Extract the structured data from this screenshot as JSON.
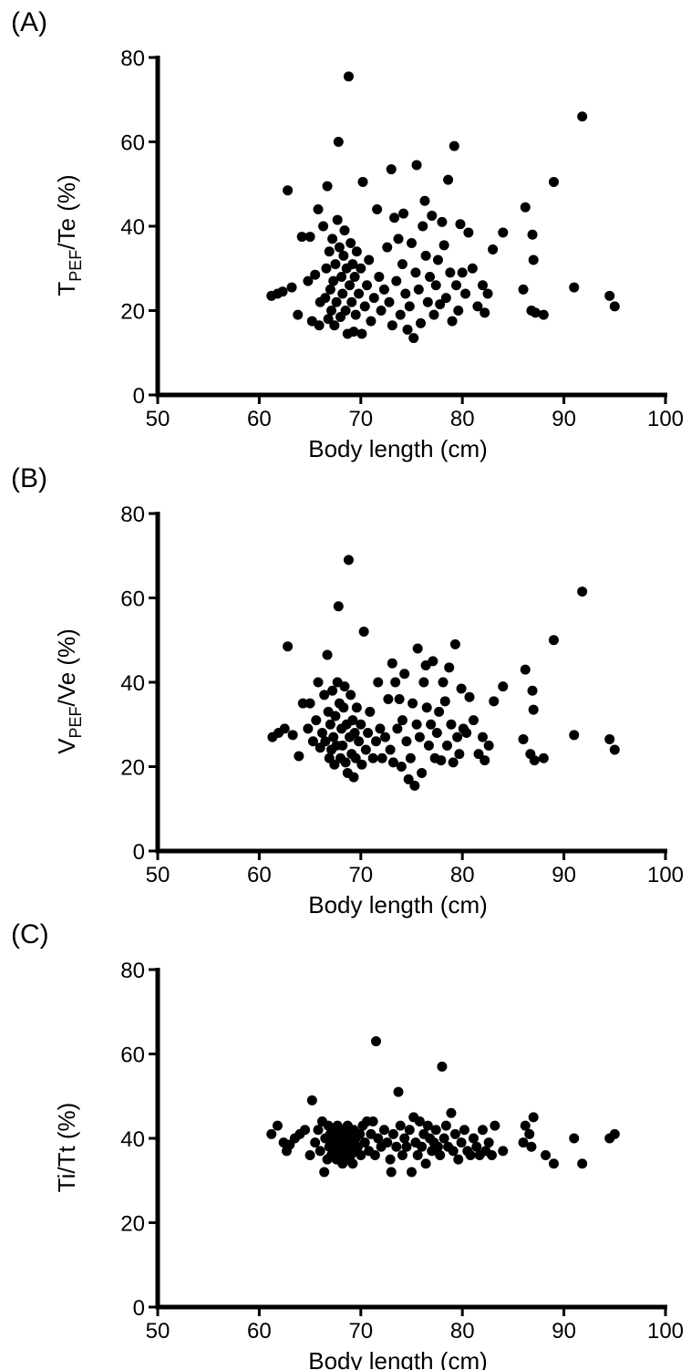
{
  "chart_data": [
    {
      "panel_label": "(A)",
      "type": "scatter",
      "xlabel": "Body length (cm)",
      "ylabel": {
        "main": "T",
        "sub": "PEF",
        "rest": "/Te (%)"
      },
      "xlim": [
        50,
        100
      ],
      "ylim": [
        0,
        80
      ],
      "xticks": [
        "50",
        "60",
        "70",
        "80",
        "90",
        "100"
      ],
      "yticks": [
        "0",
        "20",
        "40",
        "60",
        "80"
      ],
      "points": [
        [
          61.2,
          23.5
        ],
        [
          61.8,
          24
        ],
        [
          62.3,
          24.5
        ],
        [
          62.8,
          48.5
        ],
        [
          63.2,
          25.5
        ],
        [
          63.8,
          19
        ],
        [
          64.2,
          37.5
        ],
        [
          64.8,
          27
        ],
        [
          65.0,
          37.5
        ],
        [
          65.2,
          17.5
        ],
        [
          65.5,
          28.5
        ],
        [
          65.8,
          44
        ],
        [
          65.9,
          16.5
        ],
        [
          66.0,
          22
        ],
        [
          66.3,
          40
        ],
        [
          66.5,
          23
        ],
        [
          66.6,
          30
        ],
        [
          66.7,
          49.5
        ],
        [
          66.8,
          18
        ],
        [
          66.9,
          34
        ],
        [
          67.0,
          25
        ],
        [
          67.1,
          20
        ],
        [
          67.2,
          37
        ],
        [
          67.3,
          27
        ],
        [
          67.4,
          16.5
        ],
        [
          67.5,
          31
        ],
        [
          67.6,
          22
        ],
        [
          67.7,
          41.5
        ],
        [
          67.8,
          60
        ],
        [
          67.9,
          35
        ],
        [
          68.0,
          18.5
        ],
        [
          68.1,
          28
        ],
        [
          68.2,
          24
        ],
        [
          68.3,
          33
        ],
        [
          68.4,
          39
        ],
        [
          68.5,
          20
        ],
        [
          68.6,
          30
        ],
        [
          68.7,
          14.5
        ],
        [
          68.8,
          75.5
        ],
        [
          68.9,
          26
        ],
        [
          69.0,
          36
        ],
        [
          69.1,
          22
        ],
        [
          69.2,
          31
        ],
        [
          69.3,
          15
        ],
        [
          69.4,
          28
        ],
        [
          69.5,
          19
        ],
        [
          69.6,
          34
        ],
        [
          69.8,
          24
        ],
        [
          70.0,
          30
        ],
        [
          70.1,
          14.5
        ],
        [
          70.2,
          50.5
        ],
        [
          70.4,
          21
        ],
        [
          70.6,
          26
        ],
        [
          70.8,
          32
        ],
        [
          71.0,
          17.5
        ],
        [
          71.3,
          23
        ],
        [
          71.6,
          44
        ],
        [
          71.8,
          28
        ],
        [
          72.0,
          20
        ],
        [
          72.3,
          25
        ],
        [
          72.6,
          35
        ],
        [
          72.8,
          22
        ],
        [
          73.0,
          53.5
        ],
        [
          73.1,
          16.5
        ],
        [
          73.3,
          42
        ],
        [
          73.5,
          27
        ],
        [
          73.7,
          37
        ],
        [
          73.9,
          19
        ],
        [
          74.1,
          31
        ],
        [
          74.2,
          43
        ],
        [
          74.4,
          24
        ],
        [
          74.6,
          15.5
        ],
        [
          74.8,
          21
        ],
        [
          75.0,
          36
        ],
        [
          75.2,
          13.5
        ],
        [
          75.4,
          29
        ],
        [
          75.5,
          54.5
        ],
        [
          75.7,
          25
        ],
        [
          75.9,
          17
        ],
        [
          76.1,
          40
        ],
        [
          76.3,
          46
        ],
        [
          76.4,
          33
        ],
        [
          76.6,
          22
        ],
        [
          76.8,
          28
        ],
        [
          77.0,
          42.5
        ],
        [
          77.2,
          19
        ],
        [
          77.4,
          26
        ],
        [
          77.6,
          32
        ],
        [
          77.8,
          21.5
        ],
        [
          78.0,
          41
        ],
        [
          78.2,
          35.5
        ],
        [
          78.4,
          23
        ],
        [
          78.6,
          51
        ],
        [
          78.8,
          29
        ],
        [
          79.0,
          17.5
        ],
        [
          79.2,
          59
        ],
        [
          79.4,
          26
        ],
        [
          79.6,
          20
        ],
        [
          79.8,
          40.5
        ],
        [
          80.0,
          29
        ],
        [
          80.3,
          24
        ],
        [
          80.6,
          38.5
        ],
        [
          81.0,
          30
        ],
        [
          81.5,
          21
        ],
        [
          82.0,
          26
        ],
        [
          82.2,
          19.5
        ],
        [
          82.5,
          24
        ],
        [
          83.0,
          34.5
        ],
        [
          84.0,
          38.5
        ],
        [
          86.0,
          25
        ],
        [
          86.2,
          44.5
        ],
        [
          86.8,
          20
        ],
        [
          86.9,
          38
        ],
        [
          87.0,
          32
        ],
        [
          87.2,
          19.5
        ],
        [
          88.0,
          19
        ],
        [
          89.0,
          50.5
        ],
        [
          91.0,
          25.5
        ],
        [
          91.8,
          66
        ],
        [
          94.5,
          23.5
        ],
        [
          95.0,
          21
        ]
      ]
    },
    {
      "panel_label": "(B)",
      "type": "scatter",
      "xlabel": "Body length (cm)",
      "ylabel": {
        "main": "V",
        "sub": "PEF",
        "rest": "/Ve (%)"
      },
      "xlim": [
        50,
        100
      ],
      "ylim": [
        0,
        80
      ],
      "xticks": [
        "50",
        "60",
        "70",
        "80",
        "90",
        "100"
      ],
      "yticks": [
        "0",
        "20",
        "40",
        "60",
        "80"
      ],
      "points": [
        [
          61.3,
          27
        ],
        [
          61.9,
          28
        ],
        [
          62.5,
          29
        ],
        [
          62.8,
          48.5
        ],
        [
          63.3,
          27.5
        ],
        [
          63.9,
          22.5
        ],
        [
          64.3,
          35
        ],
        [
          64.8,
          29
        ],
        [
          65.0,
          35
        ],
        [
          65.3,
          26
        ],
        [
          65.6,
          31
        ],
        [
          65.8,
          40
        ],
        [
          66.0,
          24.5
        ],
        [
          66.2,
          28
        ],
        [
          66.4,
          37
        ],
        [
          66.5,
          26
        ],
        [
          66.7,
          46.5
        ],
        [
          66.8,
          33
        ],
        [
          66.9,
          22
        ],
        [
          67.0,
          30
        ],
        [
          67.1,
          24
        ],
        [
          67.2,
          38
        ],
        [
          67.3,
          27
        ],
        [
          67.4,
          20.5
        ],
        [
          67.5,
          32
        ],
        [
          67.6,
          25
        ],
        [
          67.7,
          40
        ],
        [
          67.8,
          58
        ],
        [
          67.9,
          35
        ],
        [
          68.0,
          22
        ],
        [
          68.1,
          29
        ],
        [
          68.2,
          25
        ],
        [
          68.3,
          34
        ],
        [
          68.4,
          39
        ],
        [
          68.5,
          21
        ],
        [
          68.6,
          30
        ],
        [
          68.7,
          18.5
        ],
        [
          68.8,
          69
        ],
        [
          68.9,
          27
        ],
        [
          69.0,
          37
        ],
        [
          69.1,
          23
        ],
        [
          69.2,
          31
        ],
        [
          69.3,
          17.5
        ],
        [
          69.4,
          28
        ],
        [
          69.5,
          22
        ],
        [
          69.6,
          34
        ],
        [
          69.8,
          26
        ],
        [
          70.0,
          30
        ],
        [
          70.1,
          20.5
        ],
        [
          70.3,
          52
        ],
        [
          70.5,
          24
        ],
        [
          70.7,
          28
        ],
        [
          70.9,
          33
        ],
        [
          71.2,
          22
        ],
        [
          71.5,
          26
        ],
        [
          71.7,
          40
        ],
        [
          71.9,
          29
        ],
        [
          72.1,
          22
        ],
        [
          72.4,
          27
        ],
        [
          72.7,
          36
        ],
        [
          72.9,
          24
        ],
        [
          73.1,
          44.5
        ],
        [
          73.2,
          21
        ],
        [
          73.4,
          40
        ],
        [
          73.6,
          29
        ],
        [
          73.8,
          36
        ],
        [
          74.0,
          20
        ],
        [
          74.1,
          31
        ],
        [
          74.3,
          42
        ],
        [
          74.5,
          26
        ],
        [
          74.7,
          17
        ],
        [
          74.9,
          22
        ],
        [
          75.1,
          35
        ],
        [
          75.3,
          15.5
        ],
        [
          75.5,
          30
        ],
        [
          75.6,
          48
        ],
        [
          75.8,
          27
        ],
        [
          76.0,
          18.5
        ],
        [
          76.2,
          40
        ],
        [
          76.4,
          44
        ],
        [
          76.5,
          34
        ],
        [
          76.7,
          25
        ],
        [
          76.9,
          30
        ],
        [
          77.1,
          45
        ],
        [
          77.3,
          22
        ],
        [
          77.5,
          28
        ],
        [
          77.7,
          33
        ],
        [
          77.9,
          21.5
        ],
        [
          78.1,
          40
        ],
        [
          78.3,
          35.5
        ],
        [
          78.5,
          25
        ],
        [
          78.7,
          43.5
        ],
        [
          78.9,
          30
        ],
        [
          79.1,
          21
        ],
        [
          79.3,
          49
        ],
        [
          79.5,
          27
        ],
        [
          79.7,
          23
        ],
        [
          79.9,
          38.5
        ],
        [
          80.1,
          29
        ],
        [
          80.4,
          28
        ],
        [
          80.7,
          36.5
        ],
        [
          81.1,
          31
        ],
        [
          81.6,
          23
        ],
        [
          82.0,
          27
        ],
        [
          82.2,
          21.5
        ],
        [
          82.6,
          25
        ],
        [
          83.1,
          35.5
        ],
        [
          84.0,
          39
        ],
        [
          86.0,
          26.5
        ],
        [
          86.2,
          43
        ],
        [
          86.7,
          23
        ],
        [
          86.9,
          38
        ],
        [
          87.0,
          33.5
        ],
        [
          87.1,
          21.5
        ],
        [
          88.0,
          22
        ],
        [
          89.0,
          50
        ],
        [
          91.0,
          27.5
        ],
        [
          91.8,
          61.5
        ],
        [
          94.5,
          26.5
        ],
        [
          95.0,
          24
        ]
      ]
    },
    {
      "panel_label": "(C)",
      "type": "scatter",
      "xlabel": "Body length (cm)",
      "ylabel": {
        "main": "Ti/Tt (%)",
        "sub": "",
        "rest": ""
      },
      "xlim": [
        50,
        100
      ],
      "ylim": [
        0,
        80
      ],
      "xticks": [
        "50",
        "60",
        "70",
        "80",
        "90",
        "100"
      ],
      "yticks": [
        "0",
        "20",
        "40",
        "60",
        "80"
      ],
      "points": [
        [
          61.2,
          41
        ],
        [
          61.8,
          43
        ],
        [
          62.4,
          39
        ],
        [
          62.7,
          37
        ],
        [
          63.0,
          38.5
        ],
        [
          63.5,
          40
        ],
        [
          64.0,
          41
        ],
        [
          64.5,
          42
        ],
        [
          65.0,
          36
        ],
        [
          65.2,
          49
        ],
        [
          65.5,
          39
        ],
        [
          65.8,
          42
        ],
        [
          66.0,
          37
        ],
        [
          66.2,
          44
        ],
        [
          66.4,
          32
        ],
        [
          66.5,
          40
        ],
        [
          66.7,
          35
        ],
        [
          66.8,
          43
        ],
        [
          66.9,
          38
        ],
        [
          67.0,
          41
        ],
        [
          67.1,
          36
        ],
        [
          67.2,
          39
        ],
        [
          67.3,
          42
        ],
        [
          67.4,
          37
        ],
        [
          67.5,
          40
        ],
        [
          67.6,
          35
        ],
        [
          67.7,
          43
        ],
        [
          67.8,
          38
        ],
        [
          67.9,
          41
        ],
        [
          68.0,
          36
        ],
        [
          68.1,
          39
        ],
        [
          68.2,
          34
        ],
        [
          68.3,
          42
        ],
        [
          68.4,
          37
        ],
        [
          68.5,
          40
        ],
        [
          68.6,
          35
        ],
        [
          68.7,
          43
        ],
        [
          68.8,
          38
        ],
        [
          68.9,
          41
        ],
        [
          69.0,
          36
        ],
        [
          69.1,
          39
        ],
        [
          69.2,
          34
        ],
        [
          69.3,
          42
        ],
        [
          69.4,
          37
        ],
        [
          69.5,
          40
        ],
        [
          69.7,
          38
        ],
        [
          69.9,
          41
        ],
        [
          70.0,
          36
        ],
        [
          70.2,
          43
        ],
        [
          70.4,
          39
        ],
        [
          70.6,
          44
        ],
        [
          70.8,
          37
        ],
        [
          71.0,
          41
        ],
        [
          71.2,
          44
        ],
        [
          71.4,
          36
        ],
        [
          71.5,
          63
        ],
        [
          71.7,
          40
        ],
        [
          72.0,
          38
        ],
        [
          72.3,
          42
        ],
        [
          72.6,
          39
        ],
        [
          72.9,
          35
        ],
        [
          73.0,
          32
        ],
        [
          73.2,
          41
        ],
        [
          73.5,
          38
        ],
        [
          73.7,
          51
        ],
        [
          73.9,
          43
        ],
        [
          74.1,
          36
        ],
        [
          74.3,
          40
        ],
        [
          74.5,
          38
        ],
        [
          74.8,
          42
        ],
        [
          75.0,
          32
        ],
        [
          75.2,
          45
        ],
        [
          75.4,
          39
        ],
        [
          75.6,
          36
        ],
        [
          75.8,
          44
        ],
        [
          76.0,
          38
        ],
        [
          76.2,
          41
        ],
        [
          76.4,
          34
        ],
        [
          76.6,
          43
        ],
        [
          76.8,
          40
        ],
        [
          77.0,
          37
        ],
        [
          77.2,
          39
        ],
        [
          77.4,
          42
        ],
        [
          77.6,
          38
        ],
        [
          77.8,
          36
        ],
        [
          78.0,
          57
        ],
        [
          78.2,
          40
        ],
        [
          78.4,
          43
        ],
        [
          78.6,
          38
        ],
        [
          78.9,
          46
        ],
        [
          79.1,
          37
        ],
        [
          79.3,
          41
        ],
        [
          79.6,
          35
        ],
        [
          79.9,
          39
        ],
        [
          80.2,
          42
        ],
        [
          80.5,
          37
        ],
        [
          80.8,
          36
        ],
        [
          81.1,
          40
        ],
        [
          81.4,
          38
        ],
        [
          81.7,
          36
        ],
        [
          82.0,
          42
        ],
        [
          82.3,
          37
        ],
        [
          82.6,
          39
        ],
        [
          82.9,
          36
        ],
        [
          83.2,
          43
        ],
        [
          84.0,
          37
        ],
        [
          86.0,
          39
        ],
        [
          86.2,
          43
        ],
        [
          86.6,
          41
        ],
        [
          86.8,
          38
        ],
        [
          87.0,
          45
        ],
        [
          88.2,
          36
        ],
        [
          89.0,
          34
        ],
        [
          91.0,
          40
        ],
        [
          91.8,
          34
        ],
        [
          94.5,
          40
        ],
        [
          95.0,
          41
        ]
      ]
    }
  ]
}
